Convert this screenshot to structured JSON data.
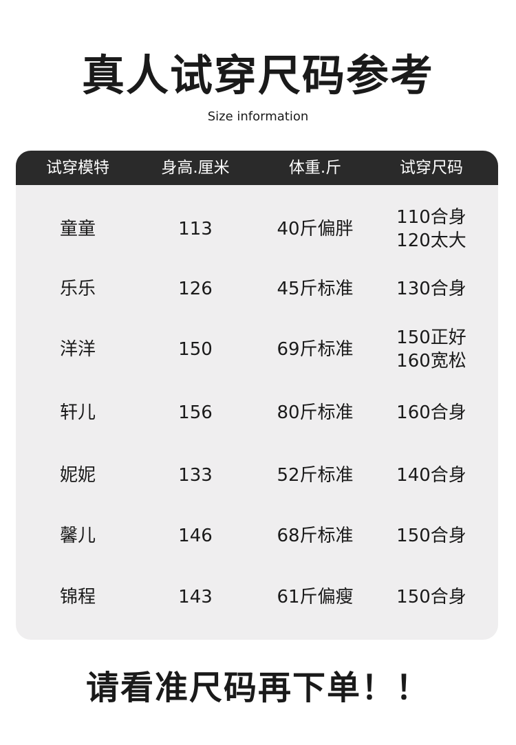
{
  "title": "真人试穿尺码参考",
  "subtitle": "Size information",
  "table": {
    "headers": [
      "试穿模特",
      "身高.厘米",
      "体重.斤",
      "试穿尺码"
    ],
    "rows": [
      [
        "童童",
        "113",
        "40斤偏胖",
        "110合身\n120太大"
      ],
      [
        "乐乐",
        "126",
        "45斤标准",
        "130合身"
      ],
      [
        "洋洋",
        "150",
        "69斤标准",
        "150正好\n160宽松"
      ],
      [
        "轩儿",
        "156",
        "80斤标准",
        "160合身"
      ],
      [
        "妮妮",
        "133",
        "52斤标准",
        "140合身"
      ],
      [
        "馨儿",
        "146",
        "68斤标准",
        "150合身"
      ],
      [
        "锦程",
        "143",
        "61斤偏瘦",
        "150合身"
      ]
    ]
  },
  "footer_note": "请看准尺码再下单！！"
}
